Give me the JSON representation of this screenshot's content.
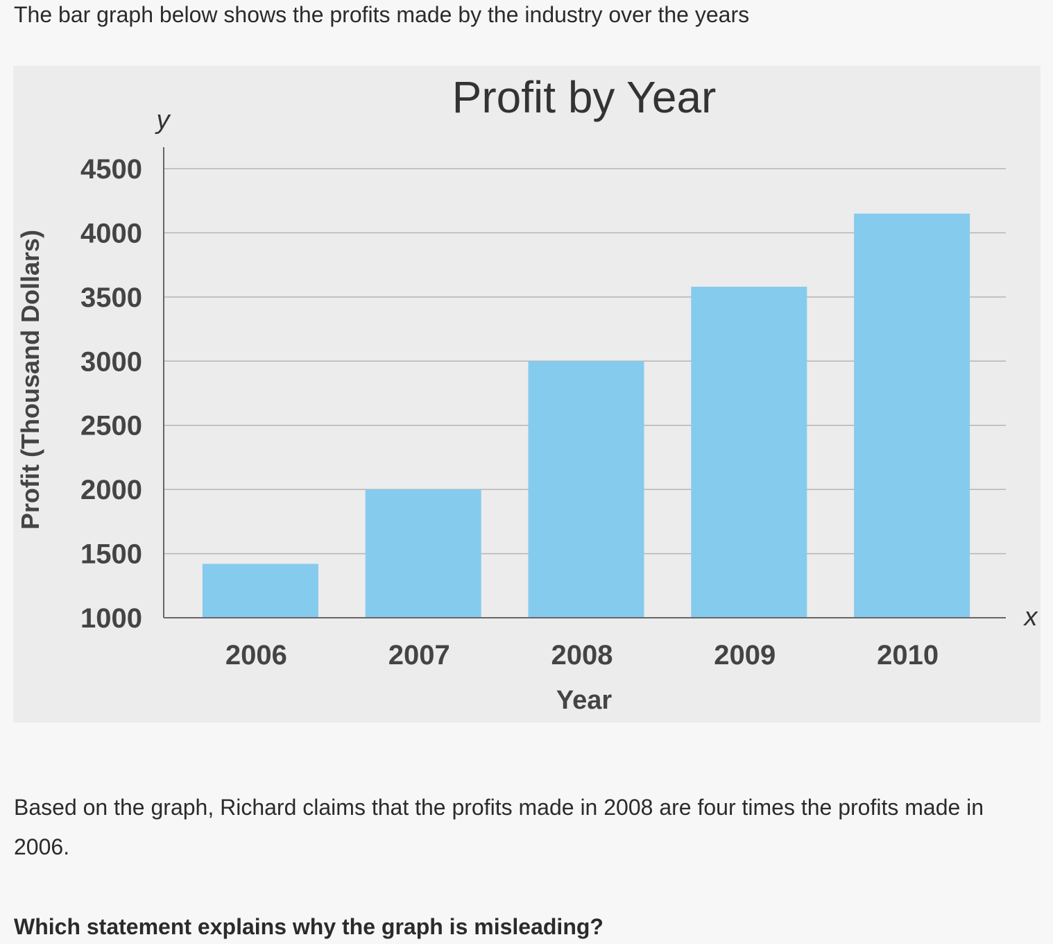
{
  "intro_text": "The bar graph below shows the profits made by the industry over the years",
  "paragraph_text": "Based on the graph, Richard claims that the profits made in 2008 are four times the profits made in 2006.",
  "question_text": "Which statement explains why the graph is misleading?",
  "chart_data": {
    "type": "bar",
    "title": "Profit by Year",
    "xlabel": "Year",
    "ylabel": "Profit (Thousand Dollars)",
    "x_axis_letter": "x",
    "y_axis_letter": "y",
    "categories": [
      "2006",
      "2007",
      "2008",
      "2009",
      "2010"
    ],
    "values": [
      1420,
      2000,
      3000,
      3580,
      4150
    ],
    "ylim": [
      1000,
      4500
    ],
    "yticks": [
      "1000",
      "1500",
      "2000",
      "2500",
      "3000",
      "3500",
      "4000",
      "4500"
    ],
    "grid": true,
    "bar_color": "#85cbee"
  }
}
